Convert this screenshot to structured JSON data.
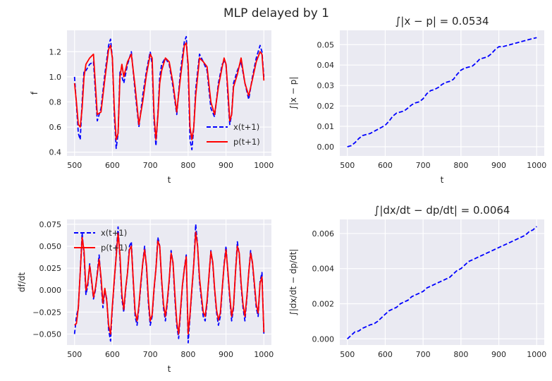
{
  "figure": {
    "suptitle": "MLP delayed by 1"
  },
  "chart_data": [
    {
      "id": "p1",
      "type": "line",
      "title": "",
      "xlabel": "t",
      "ylabel": "f",
      "xlim": [
        480,
        1020
      ],
      "ylim": [
        0.37,
        1.37
      ],
      "xticks": [
        500,
        600,
        700,
        800,
        900,
        1000
      ],
      "yticks": [
        0.4,
        0.6,
        0.8,
        1.0,
        1.2
      ],
      "ytick_labels": [
        "0.4",
        "0.6",
        "0.8",
        "1.0",
        "1.2"
      ],
      "grid": true,
      "legend": "lower-right",
      "series": [
        {
          "name": "x(t+1)",
          "color": "#0000ff",
          "style": "dashed",
          "x": [
            500,
            505,
            510,
            515,
            520,
            525,
            530,
            540,
            550,
            560,
            570,
            580,
            590,
            595,
            600,
            605,
            610,
            615,
            620,
            625,
            630,
            640,
            650,
            660,
            670,
            680,
            690,
            700,
            705,
            710,
            715,
            720,
            725,
            730,
            740,
            750,
            760,
            770,
            780,
            790,
            795,
            800,
            805,
            810,
            815,
            820,
            830,
            840,
            850,
            860,
            870,
            880,
            890,
            895,
            900,
            905,
            910,
            915,
            920,
            930,
            940,
            950,
            960,
            970,
            980,
            990,
            995,
            1000
          ],
          "y": [
            1.0,
            0.78,
            0.55,
            0.5,
            0.8,
            1.05,
            1.05,
            1.1,
            1.12,
            0.65,
            0.75,
            1.02,
            1.25,
            1.3,
            1.15,
            0.7,
            0.43,
            0.55,
            1.05,
            1.0,
            0.95,
            1.1,
            1.2,
            0.88,
            0.6,
            0.85,
            1.05,
            1.2,
            1.1,
            0.65,
            0.45,
            0.7,
            1.0,
            1.1,
            1.15,
            1.1,
            0.92,
            0.7,
            1.05,
            1.28,
            1.32,
            1.05,
            0.5,
            0.42,
            0.6,
            0.9,
            1.18,
            1.12,
            1.05,
            0.75,
            0.68,
            0.95,
            1.1,
            1.12,
            1.1,
            0.85,
            0.62,
            0.7,
            0.95,
            1.05,
            1.12,
            0.95,
            0.82,
            1.0,
            1.15,
            1.25,
            1.2,
            1.0
          ]
        },
        {
          "name": "p(t+1)",
          "color": "#ff0000",
          "style": "solid",
          "x": [
            500,
            505,
            510,
            515,
            520,
            525,
            530,
            540,
            550,
            560,
            570,
            580,
            590,
            595,
            600,
            605,
            610,
            615,
            620,
            625,
            630,
            640,
            650,
            660,
            670,
            680,
            690,
            700,
            705,
            710,
            715,
            720,
            725,
            730,
            740,
            750,
            760,
            770,
            780,
            790,
            795,
            800,
            805,
            810,
            815,
            820,
            830,
            840,
            850,
            860,
            870,
            880,
            890,
            895,
            900,
            905,
            910,
            915,
            920,
            930,
            940,
            950,
            960,
            970,
            980,
            990,
            995,
            1000
          ],
          "y": [
            0.95,
            0.8,
            0.62,
            0.6,
            0.75,
            1.0,
            1.1,
            1.15,
            1.18,
            0.7,
            0.72,
            0.98,
            1.22,
            1.25,
            1.15,
            0.75,
            0.5,
            0.55,
            1.0,
            1.1,
            1.0,
            1.12,
            1.18,
            0.92,
            0.62,
            0.8,
            1.02,
            1.18,
            1.15,
            0.7,
            0.5,
            0.68,
            0.95,
            1.05,
            1.15,
            1.12,
            0.95,
            0.72,
            1.0,
            1.25,
            1.27,
            1.1,
            0.6,
            0.5,
            0.6,
            0.85,
            1.15,
            1.12,
            1.08,
            0.8,
            0.7,
            0.92,
            1.08,
            1.15,
            1.1,
            0.9,
            0.65,
            0.7,
            0.92,
            1.02,
            1.15,
            0.95,
            0.85,
            0.98,
            1.12,
            1.2,
            1.18,
            0.97
          ]
        }
      ]
    },
    {
      "id": "p2",
      "type": "line",
      "title": "∫|x − p| = 0.0534",
      "xlabel": "t",
      "ylabel": "∫|x − p|",
      "xlim": [
        480,
        1020
      ],
      "ylim": [
        -0.0045,
        0.057
      ],
      "xticks": [
        500,
        600,
        700,
        800,
        900,
        1000
      ],
      "yticks": [
        0.0,
        0.01,
        0.02,
        0.03,
        0.04,
        0.05
      ],
      "ytick_labels": [
        "0.00",
        "0.01",
        "0.02",
        "0.03",
        "0.04",
        "0.05"
      ],
      "grid": true,
      "legend": "none",
      "series": [
        {
          "name": "",
          "color": "#0000ff",
          "style": "dashed",
          "x": [
            500,
            510,
            520,
            530,
            540,
            550,
            560,
            570,
            580,
            590,
            600,
            610,
            620,
            630,
            640,
            650,
            660,
            670,
            680,
            690,
            700,
            710,
            720,
            730,
            740,
            750,
            760,
            770,
            780,
            790,
            800,
            810,
            820,
            830,
            840,
            850,
            860,
            870,
            880,
            890,
            900,
            910,
            920,
            930,
            940,
            950,
            960,
            970,
            980,
            990,
            1000
          ],
          "y": [
            0.0,
            0.0005,
            0.002,
            0.004,
            0.0055,
            0.006,
            0.0065,
            0.0075,
            0.0085,
            0.0095,
            0.0105,
            0.0125,
            0.015,
            0.0165,
            0.017,
            0.0175,
            0.019,
            0.0205,
            0.0215,
            0.022,
            0.0235,
            0.026,
            0.0275,
            0.028,
            0.029,
            0.0305,
            0.0315,
            0.032,
            0.033,
            0.0355,
            0.0375,
            0.0385,
            0.039,
            0.0395,
            0.041,
            0.043,
            0.0435,
            0.044,
            0.0455,
            0.0475,
            0.049,
            0.049,
            0.0495,
            0.05,
            0.0505,
            0.051,
            0.0515,
            0.052,
            0.0525,
            0.053,
            0.0534
          ]
        }
      ]
    },
    {
      "id": "p3",
      "type": "line",
      "title": "",
      "xlabel": "t",
      "ylabel": "df/dt",
      "xlim": [
        480,
        1020
      ],
      "ylim": [
        -0.0625,
        0.0805
      ],
      "xticks": [
        500,
        600,
        700,
        800,
        900,
        1000
      ],
      "yticks": [
        -0.05,
        -0.025,
        0.0,
        0.025,
        0.05,
        0.075
      ],
      "ytick_labels": [
        "−0.050",
        "−0.025",
        "0.000",
        "0.025",
        "0.050",
        "0.075"
      ],
      "grid": true,
      "legend": "top-left",
      "series": [
        {
          "name": "x(t+1)",
          "color": "#0000ff",
          "style": "dashed",
          "x": [
            500,
            505,
            510,
            515,
            520,
            525,
            530,
            535,
            540,
            545,
            550,
            555,
            560,
            565,
            570,
            575,
            580,
            585,
            590,
            595,
            600,
            605,
            610,
            615,
            620,
            625,
            630,
            635,
            640,
            645,
            650,
            655,
            660,
            665,
            670,
            675,
            680,
            685,
            690,
            695,
            700,
            705,
            710,
            715,
            720,
            725,
            730,
            735,
            740,
            745,
            750,
            755,
            760,
            765,
            770,
            775,
            780,
            785,
            790,
            795,
            800,
            805,
            810,
            815,
            820,
            825,
            830,
            835,
            840,
            845,
            850,
            855,
            860,
            865,
            870,
            875,
            880,
            885,
            890,
            895,
            900,
            905,
            910,
            915,
            920,
            925,
            930,
            935,
            940,
            945,
            950,
            955,
            960,
            965,
            970,
            975,
            980,
            985,
            990,
            995,
            1000
          ],
          "y": [
            -0.05,
            -0.03,
            -0.02,
            0.02,
            0.065,
            0.04,
            -0.005,
            0.005,
            0.03,
            0.01,
            -0.01,
            0.0,
            0.02,
            0.04,
            0.01,
            -0.02,
            0.0,
            -0.01,
            -0.045,
            -0.058,
            -0.02,
            0.01,
            0.04,
            0.072,
            0.035,
            -0.01,
            -0.025,
            0.0,
            0.02,
            0.05,
            0.055,
            0.01,
            -0.03,
            -0.04,
            -0.02,
            0.005,
            0.03,
            0.05,
            0.025,
            -0.015,
            -0.04,
            -0.03,
            0.0,
            0.025,
            0.06,
            0.05,
            0.01,
            -0.02,
            -0.035,
            -0.015,
            0.01,
            0.045,
            0.03,
            -0.01,
            -0.04,
            -0.055,
            -0.025,
            0.005,
            0.025,
            0.04,
            -0.06,
            -0.03,
            0.0,
            0.03,
            0.075,
            0.05,
            0.01,
            -0.01,
            -0.03,
            -0.035,
            -0.015,
            0.015,
            0.045,
            0.03,
            0.0,
            -0.025,
            -0.04,
            -0.03,
            0.0,
            0.03,
            0.05,
            0.02,
            -0.01,
            -0.035,
            -0.02,
            0.02,
            0.055,
            0.04,
            0.005,
            -0.02,
            -0.035,
            -0.01,
            0.02,
            0.045,
            0.03,
            0.005,
            -0.02,
            -0.03,
            0.01,
            0.02,
            -0.05
          ]
        },
        {
          "name": "p(t+1)",
          "color": "#ff0000",
          "style": "solid",
          "x": [
            500,
            505,
            510,
            515,
            520,
            525,
            530,
            535,
            540,
            545,
            550,
            555,
            560,
            565,
            570,
            575,
            580,
            585,
            590,
            595,
            600,
            605,
            610,
            615,
            620,
            625,
            630,
            635,
            640,
            645,
            650,
            655,
            660,
            665,
            670,
            675,
            680,
            685,
            690,
            695,
            700,
            705,
            710,
            715,
            720,
            725,
            730,
            735,
            740,
            745,
            750,
            755,
            760,
            765,
            770,
            775,
            780,
            785,
            790,
            795,
            800,
            805,
            810,
            815,
            820,
            825,
            830,
            835,
            840,
            845,
            850,
            855,
            860,
            865,
            870,
            875,
            880,
            885,
            890,
            895,
            900,
            905,
            910,
            915,
            920,
            925,
            930,
            935,
            940,
            945,
            950,
            955,
            960,
            965,
            970,
            975,
            980,
            985,
            990,
            995,
            1000
          ],
          "y": [
            -0.04,
            -0.038,
            -0.02,
            0.02,
            0.06,
            0.045,
            0.0,
            0.008,
            0.028,
            0.012,
            -0.008,
            0.002,
            0.018,
            0.035,
            0.015,
            -0.015,
            0.002,
            -0.012,
            -0.04,
            -0.05,
            -0.018,
            0.012,
            0.038,
            0.065,
            0.04,
            -0.005,
            -0.022,
            0.002,
            0.02,
            0.046,
            0.05,
            0.012,
            -0.025,
            -0.035,
            -0.018,
            0.008,
            0.03,
            0.046,
            0.028,
            -0.01,
            -0.035,
            -0.028,
            0.002,
            0.024,
            0.056,
            0.05,
            0.012,
            -0.016,
            -0.03,
            -0.012,
            0.012,
            0.042,
            0.032,
            -0.005,
            -0.036,
            -0.05,
            -0.022,
            0.006,
            0.024,
            0.038,
            -0.05,
            -0.028,
            0.002,
            0.03,
            0.066,
            0.05,
            0.014,
            -0.006,
            -0.025,
            -0.03,
            -0.012,
            0.016,
            0.044,
            0.032,
            0.002,
            -0.022,
            -0.034,
            -0.026,
            0.002,
            0.028,
            0.046,
            0.022,
            -0.006,
            -0.03,
            -0.018,
            0.02,
            0.05,
            0.042,
            0.008,
            -0.016,
            -0.03,
            -0.008,
            0.02,
            0.042,
            0.032,
            0.008,
            -0.016,
            -0.026,
            0.008,
            0.015,
            -0.048
          ]
        }
      ]
    },
    {
      "id": "p4",
      "type": "line",
      "title": "∫|dx/dt − dp/dt| = 0.0064",
      "xlabel": "",
      "ylabel": "∫|dx/dt − dp/dt|",
      "xlim": [
        480,
        1020
      ],
      "ylim": [
        -0.00035,
        0.0068
      ],
      "xticks": [
        500,
        600,
        700,
        800,
        900,
        1000
      ],
      "yticks": [
        0.0,
        0.002,
        0.004,
        0.006
      ],
      "ytick_labels": [
        "0.000",
        "0.002",
        "0.004",
        "0.006"
      ],
      "grid": true,
      "legend": "none",
      "series": [
        {
          "name": "",
          "color": "#0000ff",
          "style": "dashed",
          "x": [
            500,
            510,
            520,
            530,
            540,
            550,
            560,
            570,
            580,
            590,
            600,
            610,
            620,
            630,
            640,
            650,
            660,
            670,
            680,
            690,
            700,
            710,
            720,
            730,
            740,
            750,
            760,
            770,
            780,
            790,
            800,
            810,
            820,
            830,
            840,
            850,
            860,
            870,
            880,
            890,
            900,
            910,
            920,
            930,
            940,
            950,
            960,
            970,
            980,
            990,
            1000
          ],
          "y": [
            0.0,
            0.0002,
            0.0004,
            0.00045,
            0.0006,
            0.0007,
            0.0008,
            0.00085,
            0.001,
            0.0012,
            0.0014,
            0.0016,
            0.0017,
            0.0018,
            0.002,
            0.0021,
            0.0022,
            0.0024,
            0.0025,
            0.0026,
            0.0027,
            0.0029,
            0.003,
            0.0031,
            0.0032,
            0.0033,
            0.0034,
            0.0035,
            0.0037,
            0.0039,
            0.004,
            0.0042,
            0.0044,
            0.0045,
            0.0046,
            0.0047,
            0.0048,
            0.0049,
            0.005,
            0.0051,
            0.0052,
            0.0053,
            0.0054,
            0.0055,
            0.0056,
            0.0057,
            0.0058,
            0.0059,
            0.0061,
            0.0062,
            0.0064
          ]
        }
      ]
    }
  ]
}
